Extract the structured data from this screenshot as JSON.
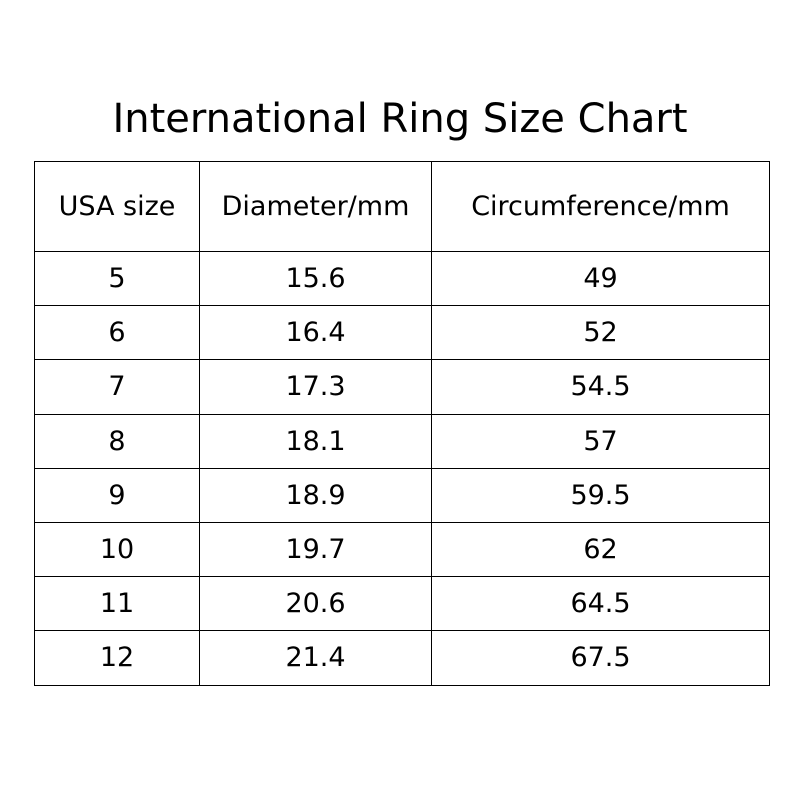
{
  "header": {
    "title": "International Ring Size Chart"
  },
  "table": {
    "columns": [
      "USA size",
      "Diameter/mm",
      "Circumference/mm"
    ],
    "rows": [
      [
        5,
        15.6,
        49
      ],
      [
        6,
        16.4,
        52
      ],
      [
        7,
        17.3,
        54.5
      ],
      [
        8,
        18.1,
        57
      ],
      [
        9,
        18.9,
        59.5
      ],
      [
        10,
        19.7,
        62
      ],
      [
        11,
        20.6,
        64.5
      ],
      [
        12,
        21.4,
        67.5
      ]
    ]
  }
}
